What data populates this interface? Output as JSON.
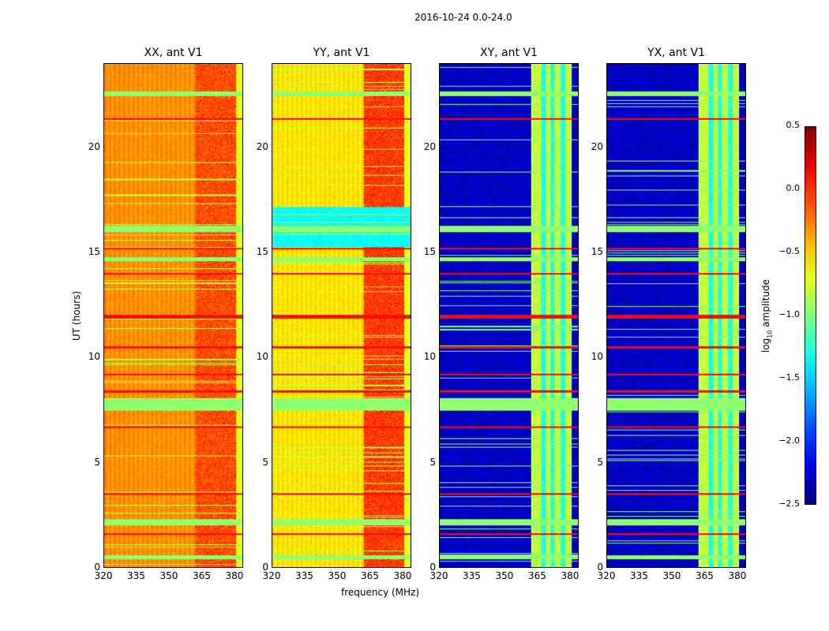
{
  "chart_data": {
    "type": "heatmap",
    "title": "2016-10-24 0.0-24.0",
    "xlabel": "frequency (MHz)",
    "ylabel": "UT (hours)",
    "xlim": [
      320,
      384
    ],
    "ylim": [
      0,
      24
    ],
    "xticks": [
      "320",
      "335",
      "350",
      "365",
      "380"
    ],
    "xtick_values": [
      320,
      335,
      350,
      365,
      380
    ],
    "yticks": [
      "0",
      "5",
      "10",
      "15",
      "20"
    ],
    "ytick_values": [
      0,
      5,
      10,
      15,
      20
    ],
    "colorbar": {
      "label": "log10 amplitude",
      "label_main": "log",
      "label_sub": "10",
      "label_tail": " amplitude",
      "vmin": -2.5,
      "vmax": 0.5,
      "ticks": [
        "0.5",
        "0.0",
        "−0.5",
        "−1.0",
        "−1.5",
        "−2.0",
        "−2.5"
      ],
      "tick_values": [
        0.5,
        0,
        -0.5,
        -1,
        -1.5,
        -2,
        -2.5
      ],
      "colormap": "jet"
    },
    "panels": [
      {
        "title": "XX, ant V1",
        "low_band_level": -0.3,
        "high_band_level": -0.1,
        "high_band_start": 362,
        "cyan_band": null
      },
      {
        "title": "YY, ant V1",
        "low_band_level": -0.55,
        "high_band_level": -0.05,
        "high_band_start": 362,
        "cyan_band": [
          15.3,
          17.2
        ]
      },
      {
        "title": "XY, ant V1",
        "low_band_level": -2.3,
        "high_band_level": -0.8,
        "high_band_start": 362,
        "cyan_band": null
      },
      {
        "title": "YX, ant V1",
        "low_band_level": -2.3,
        "high_band_level": -0.8,
        "high_band_start": 362,
        "cyan_band": null
      }
    ],
    "flagged_bands_hours": [
      [
        0.4,
        0.6
      ],
      [
        2.0,
        2.3
      ],
      [
        7.5,
        8.1
      ],
      [
        14.6,
        14.8
      ],
      [
        16.0,
        16.3
      ],
      [
        22.5,
        22.7
      ]
    ],
    "rfi_lines_hours": [
      1.6,
      3.5,
      6.7,
      8.4,
      9.2,
      10.5,
      11.9,
      12.0,
      14.0,
      15.2,
      21.4
    ]
  }
}
